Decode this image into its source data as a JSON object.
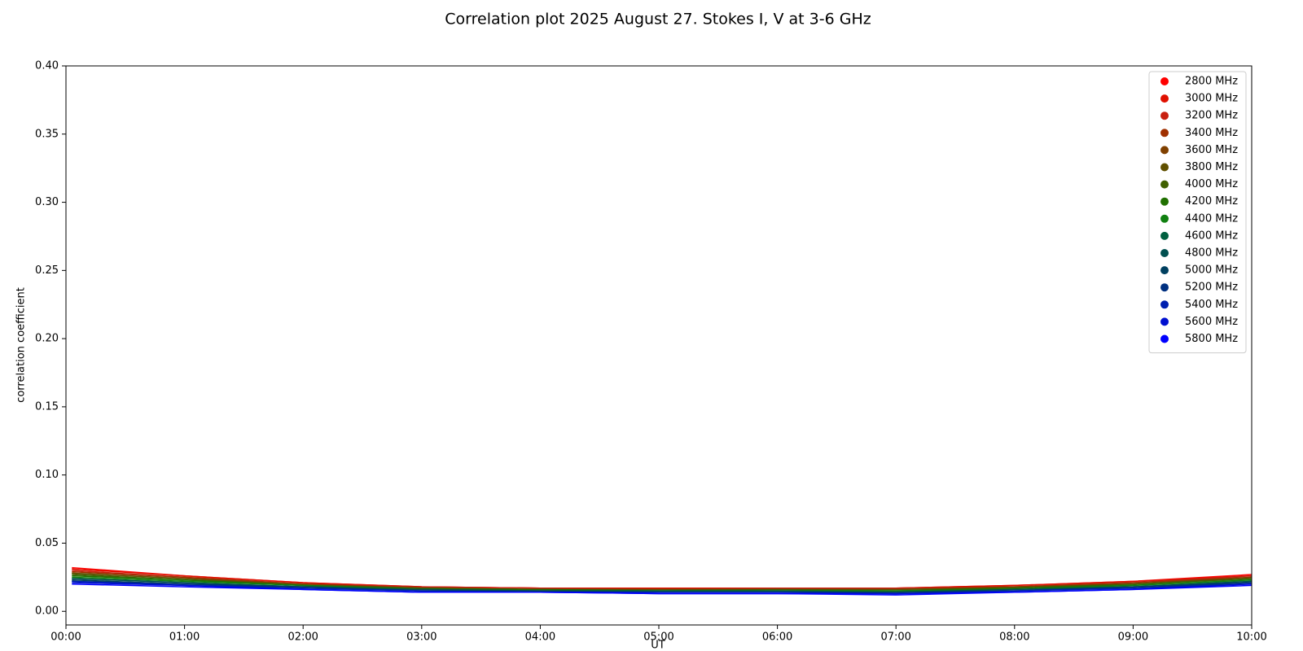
{
  "chart_data": {
    "type": "line",
    "title": "Correlation plot 2025 August 27. Stokes I, V at 3-6 GHz",
    "x_label": "UT",
    "y_label": "correlation coefficient",
    "x": [
      0.05,
      1,
      2,
      3,
      4,
      5,
      6,
      7,
      8,
      9,
      10
    ],
    "xlim": [
      0,
      10
    ],
    "xticks": [
      {
        "value": 0,
        "label": "00:00"
      },
      {
        "value": 1,
        "label": "01:00"
      },
      {
        "value": 2,
        "label": "02:00"
      },
      {
        "value": 3,
        "label": "03:00"
      },
      {
        "value": 4,
        "label": "04:00"
      },
      {
        "value": 5,
        "label": "05:00"
      },
      {
        "value": 6,
        "label": "06:00"
      },
      {
        "value": 7,
        "label": "07:00"
      },
      {
        "value": 8,
        "label": "08:00"
      },
      {
        "value": 9,
        "label": "09:00"
      },
      {
        "value": 10,
        "label": "10:00"
      }
    ],
    "ylim": [
      -0.01,
      0.4
    ],
    "yticks": [
      {
        "value": 0,
        "label": "0.00"
      },
      {
        "value": 0.05,
        "label": "0.05"
      },
      {
        "value": 0.1,
        "label": "0.10"
      },
      {
        "value": 0.15,
        "label": "0.15"
      },
      {
        "value": 0.2,
        "label": "0.20"
      },
      {
        "value": 0.25,
        "label": "0.25"
      },
      {
        "value": 0.3,
        "label": "0.30"
      },
      {
        "value": 0.35,
        "label": "0.35"
      },
      {
        "value": 0.4,
        "label": "0.40"
      }
    ],
    "grid": false,
    "legend": "upper right",
    "series": [
      {
        "name": "2800 MHz",
        "color": "#ff0000",
        "values": [
          0.032,
          0.026,
          0.021,
          0.018,
          0.017,
          0.017,
          0.017,
          0.017,
          0.019,
          0.022,
          0.027
        ]
      },
      {
        "name": "3000 MHz",
        "color": "#e01000",
        "values": [
          0.031,
          0.026,
          0.021,
          0.018,
          0.017,
          0.017,
          0.017,
          0.017,
          0.019,
          0.022,
          0.026
        ]
      },
      {
        "name": "3200 MHz",
        "color": "#c82010",
        "values": [
          0.03,
          0.025,
          0.02,
          0.018,
          0.017,
          0.016,
          0.017,
          0.017,
          0.018,
          0.021,
          0.026
        ]
      },
      {
        "name": "3400 MHz",
        "color": "#a03000",
        "values": [
          0.029,
          0.025,
          0.02,
          0.017,
          0.016,
          0.016,
          0.016,
          0.016,
          0.018,
          0.021,
          0.025
        ]
      },
      {
        "name": "3600 MHz",
        "color": "#804000",
        "values": [
          0.028,
          0.024,
          0.02,
          0.017,
          0.016,
          0.016,
          0.016,
          0.016,
          0.018,
          0.02,
          0.025
        ]
      },
      {
        "name": "3800 MHz",
        "color": "#605000",
        "values": [
          0.028,
          0.024,
          0.019,
          0.017,
          0.016,
          0.016,
          0.016,
          0.016,
          0.017,
          0.02,
          0.024
        ]
      },
      {
        "name": "4000 MHz",
        "color": "#406000",
        "values": [
          0.027,
          0.023,
          0.019,
          0.017,
          0.016,
          0.015,
          0.016,
          0.015,
          0.017,
          0.02,
          0.024
        ]
      },
      {
        "name": "4200 MHz",
        "color": "#207000",
        "values": [
          0.026,
          0.023,
          0.019,
          0.016,
          0.016,
          0.015,
          0.015,
          0.015,
          0.017,
          0.019,
          0.023
        ]
      },
      {
        "name": "4400 MHz",
        "color": "#108010",
        "values": [
          0.025,
          0.022,
          0.019,
          0.016,
          0.015,
          0.015,
          0.015,
          0.015,
          0.016,
          0.019,
          0.023
        ]
      },
      {
        "name": "4600 MHz",
        "color": "#006040",
        "values": [
          0.024,
          0.021,
          0.018,
          0.016,
          0.015,
          0.015,
          0.015,
          0.014,
          0.016,
          0.018,
          0.022
        ]
      },
      {
        "name": "4800 MHz",
        "color": "#005050",
        "values": [
          0.024,
          0.021,
          0.018,
          0.016,
          0.015,
          0.014,
          0.014,
          0.014,
          0.016,
          0.018,
          0.022
        ]
      },
      {
        "name": "5000 MHz",
        "color": "#004060",
        "values": [
          0.023,
          0.02,
          0.018,
          0.015,
          0.015,
          0.014,
          0.014,
          0.014,
          0.015,
          0.018,
          0.021
        ]
      },
      {
        "name": "5200 MHz",
        "color": "#003080",
        "values": [
          0.022,
          0.02,
          0.017,
          0.015,
          0.014,
          0.014,
          0.014,
          0.013,
          0.015,
          0.017,
          0.021
        ]
      },
      {
        "name": "5400 MHz",
        "color": "#0020b0",
        "values": [
          0.022,
          0.019,
          0.017,
          0.015,
          0.014,
          0.014,
          0.014,
          0.013,
          0.015,
          0.017,
          0.02
        ]
      },
      {
        "name": "5600 MHz",
        "color": "#0010d0",
        "values": [
          0.021,
          0.019,
          0.016,
          0.014,
          0.014,
          0.013,
          0.013,
          0.013,
          0.014,
          0.016,
          0.02
        ]
      },
      {
        "name": "5800 MHz",
        "color": "#0000ff",
        "values": [
          0.02,
          0.018,
          0.016,
          0.014,
          0.014,
          0.013,
          0.013,
          0.012,
          0.014,
          0.016,
          0.019
        ]
      }
    ]
  }
}
